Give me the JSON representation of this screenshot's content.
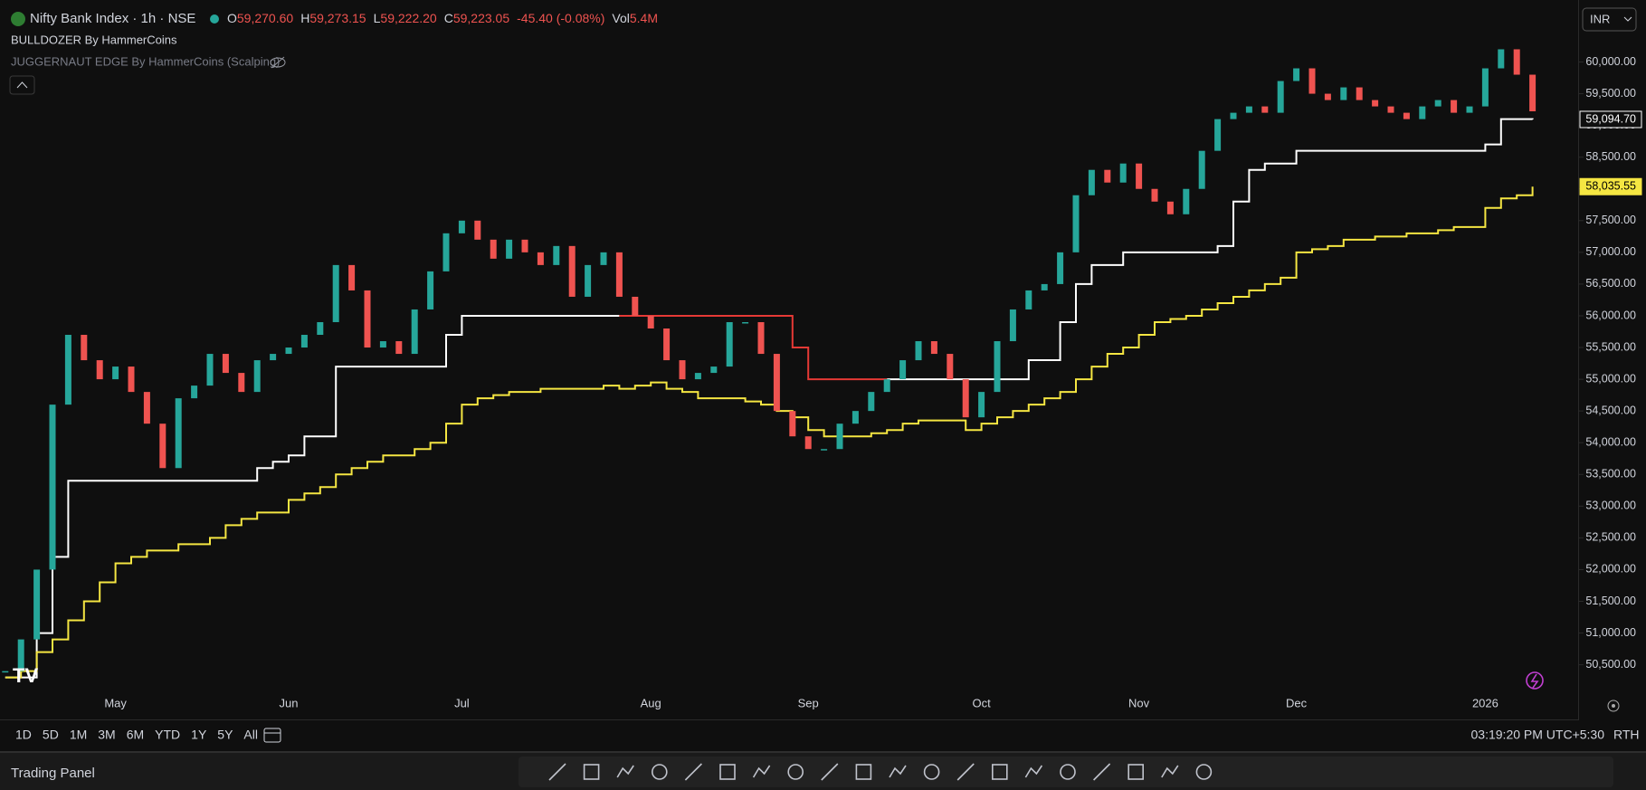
{
  "header": {
    "symbol": "Nifty Bank Index · 1h · NSE",
    "o_label": "O",
    "open": "59,270.60",
    "h_label": "H",
    "high": "59,273.15",
    "l_label": "L",
    "low": "59,222.20",
    "c_label": "C",
    "close": "59,223.05",
    "change": "-45.40 (-0.08%)",
    "vol_label": "Vol",
    "volume": "5.4M",
    "indicators": [
      "BULLDOZER By HammerCoins",
      "JUGGERNAUT EDGE By HammerCoins (Scalping)"
    ],
    "currency": "INR"
  },
  "footer": {
    "ranges": [
      "1D",
      "5D",
      "1M",
      "3M",
      "6M",
      "YTD",
      "1Y",
      "5Y",
      "All"
    ],
    "time": "03:19:20 PM UTC+5:30",
    "session": "RTH",
    "panel": "Trading Panel"
  },
  "chart_data": {
    "type": "candlestick",
    "up_color": "#26a69a",
    "down_color": "#ef5350",
    "categories": [
      null,
      null,
      null,
      null,
      null,
      null,
      null,
      "May",
      null,
      null,
      null,
      null,
      null,
      null,
      null,
      null,
      null,
      null,
      "Jun",
      null,
      null,
      null,
      null,
      null,
      null,
      null,
      null,
      null,
      null,
      "Jul",
      null,
      null,
      null,
      null,
      null,
      null,
      null,
      null,
      null,
      null,
      null,
      "Aug",
      null,
      null,
      null,
      null,
      null,
      null,
      null,
      null,
      null,
      "Sep",
      null,
      null,
      null,
      null,
      null,
      null,
      null,
      null,
      null,
      null,
      "Oct",
      null,
      null,
      null,
      null,
      null,
      null,
      null,
      null,
      null,
      "Nov",
      null,
      null,
      null,
      null,
      null,
      null,
      null,
      null,
      null,
      "Dec",
      null,
      null,
      null,
      null,
      null,
      null,
      null,
      null,
      null,
      null,
      null,
      "2026",
      null,
      null,
      null
    ],
    "values": [
      50400,
      50900,
      52000,
      54600,
      55700,
      55300,
      55000,
      55200,
      54800,
      54300,
      53600,
      54700,
      54900,
      55400,
      55100,
      54800,
      55300,
      55400,
      55500,
      55700,
      55900,
      56800,
      56400,
      55500,
      55600,
      55400,
      56100,
      56700,
      57300,
      57500,
      57200,
      56900,
      57200,
      57000,
      56800,
      57100,
      56300,
      56800,
      57000,
      56300,
      56000,
      55800,
      55300,
      55000,
      55100,
      55200,
      55900,
      55900,
      55400,
      54500,
      54100,
      53900,
      53900,
      54300,
      54500,
      54800,
      55000,
      55300,
      55600,
      55400,
      55000,
      54400,
      54800,
      55600,
      56100,
      56400,
      56500,
      57000,
      57900,
      58300,
      58100,
      58400,
      58000,
      57800,
      57600,
      58000,
      58600,
      59100,
      59200,
      59300,
      59200,
      59700,
      59900,
      59500,
      59400,
      59600,
      59400,
      59300,
      59200,
      59100,
      59300,
      59400,
      59200,
      59300,
      59900,
      60200,
      59800,
      59223.05
    ],
    "series": [
      {
        "color": "#ffffff",
        "values": [
          50300,
          50300,
          51000,
          52200,
          53400,
          53400,
          53400,
          53400,
          53400,
          53400,
          53400,
          53400,
          53400,
          53400,
          53400,
          53400,
          53600,
          53700,
          53800,
          54100,
          54100,
          55200,
          55200,
          55200,
          55200,
          55200,
          55200,
          55200,
          55700,
          56000,
          56000,
          56000,
          56000,
          56000,
          56000,
          56000,
          56000,
          56000,
          56000,
          56000,
          null,
          null,
          null,
          null,
          null,
          null,
          null,
          null,
          null,
          null,
          null,
          null,
          null,
          null,
          null,
          null,
          55000,
          55000,
          55000,
          55000,
          55000,
          55000,
          55000,
          55000,
          55000,
          55300,
          55300,
          55900,
          56500,
          56800,
          56800,
          57000,
          57000,
          57000,
          57000,
          57000,
          57000,
          57100,
          57800,
          58300,
          58400,
          58400,
          58600,
          58600,
          58600,
          58600,
          58600,
          58600,
          58600,
          58600,
          58600,
          58600,
          58600,
          58600,
          58700,
          59100,
          59100,
          59094.7
        ]
      },
      {
        "color": "#e53935",
        "values": [
          null,
          null,
          null,
          null,
          null,
          null,
          null,
          null,
          null,
          null,
          null,
          null,
          null,
          null,
          null,
          null,
          null,
          null,
          null,
          null,
          null,
          null,
          null,
          null,
          null,
          null,
          null,
          null,
          null,
          null,
          null,
          null,
          null,
          null,
          null,
          null,
          null,
          null,
          null,
          56000,
          56000,
          56000,
          56000,
          56000,
          56000,
          56000,
          56000,
          56000,
          56000,
          56000,
          55500,
          55000,
          55000,
          55000,
          55000,
          55000,
          55000,
          null,
          null,
          null,
          null,
          null,
          null,
          null,
          null,
          null,
          null,
          null,
          null,
          null,
          null,
          null,
          null,
          null,
          null,
          null,
          null,
          null,
          null,
          null,
          null,
          null,
          null,
          null,
          null,
          null,
          null,
          null,
          null,
          null,
          null,
          null,
          null,
          null,
          null,
          null,
          null,
          null
        ]
      },
      {
        "color": "#f5e642",
        "values": [
          50300,
          50400,
          50700,
          50900,
          51200,
          51500,
          51800,
          52100,
          52200,
          52300,
          52300,
          52400,
          52400,
          52500,
          52700,
          52800,
          52900,
          52900,
          53100,
          53200,
          53300,
          53500,
          53600,
          53700,
          53800,
          53800,
          53900,
          54000,
          54300,
          54600,
          54700,
          54750,
          54800,
          54800,
          54850,
          54850,
          54850,
          54850,
          54900,
          54850,
          54900,
          54950,
          54850,
          54800,
          54700,
          54700,
          54700,
          54650,
          54600,
          54500,
          54400,
          54200,
          54100,
          54100,
          54100,
          54150,
          54200,
          54300,
          54350,
          54350,
          54350,
          54200,
          54300,
          54400,
          54500,
          54600,
          54700,
          54800,
          55000,
          55200,
          55400,
          55500,
          55700,
          55900,
          55950,
          56000,
          56100,
          56200,
          56300,
          56400,
          56500,
          56600,
          57000,
          57050,
          57100,
          57200,
          57200,
          57250,
          57250,
          57300,
          57300,
          57350,
          57400,
          57400,
          57700,
          57850,
          57900,
          58035.55
        ]
      }
    ],
    "markers": [
      {
        "value": 59094.7,
        "label": "59,094.70",
        "color": "#ffffff"
      },
      {
        "value": 58035.55,
        "label": "58,035.55",
        "color": "#f5e642"
      }
    ],
    "ylim": [
      49639,
      60977
    ],
    "yticks": [
      {
        "value": 50500,
        "label": "50,500.00"
      },
      {
        "value": 51000,
        "label": "51,000.00"
      },
      {
        "value": 51500,
        "label": "51,500.00"
      },
      {
        "value": 52000,
        "label": "52,000.00"
      },
      {
        "value": 52500,
        "label": "52,500.00"
      },
      {
        "value": 53000,
        "label": "53,000.00"
      },
      {
        "value": 53500,
        "label": "53,500.00"
      },
      {
        "value": 54000,
        "label": "54,000.00"
      },
      {
        "value": 54500,
        "label": "54,500.00"
      },
      {
        "value": 55000,
        "label": "55,000.00"
      },
      {
        "value": 55500,
        "label": "55,500.00"
      },
      {
        "value": 56000,
        "label": "56,000.00"
      },
      {
        "value": 56500,
        "label": "56,500.00"
      },
      {
        "value": 57000,
        "label": "57,000.00"
      },
      {
        "value": 57500,
        "label": "57,500.00"
      },
      {
        "value": 58000,
        "label": "58,000.00"
      },
      {
        "value": 58500,
        "label": "58,500.00"
      },
      {
        "value": 59000,
        "label": "59,000.00"
      },
      {
        "value": 59500,
        "label": "59,500.00"
      },
      {
        "value": 60000,
        "label": "60,000.00"
      }
    ],
    "grid": false
  }
}
